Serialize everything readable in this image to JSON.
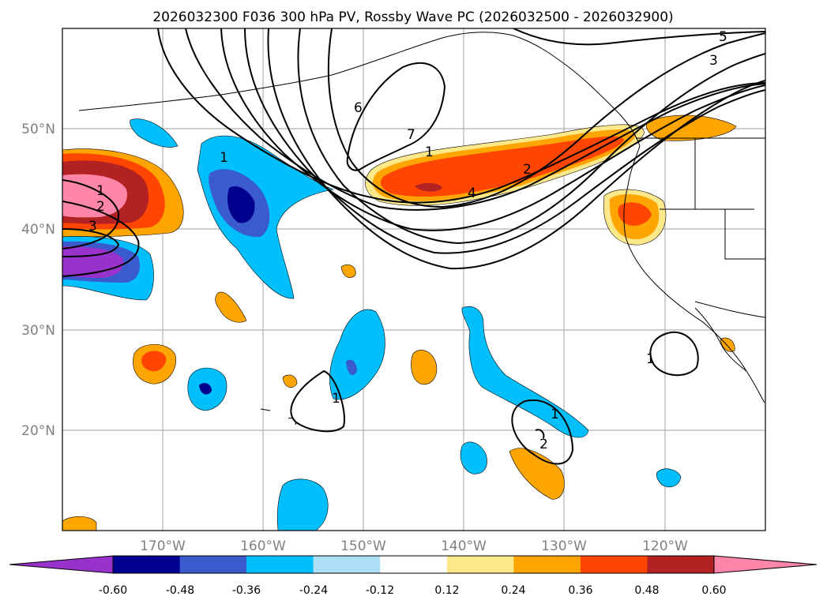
{
  "title": "2026032300 F036 300 hPa PV, Rossby Wave PC (2026032500 - 2026032900)",
  "map": {
    "lat_labels": [
      "50°N",
      "40°N",
      "30°N",
      "20°N"
    ],
    "lon_labels": [
      "170°W",
      "160°W",
      "150°W",
      "140°W",
      "130°W",
      "120°W"
    ],
    "contour_labels": [
      "1",
      "2",
      "3",
      "4",
      "5",
      "6",
      "7",
      "3",
      "2",
      "1",
      "1",
      "1",
      "1",
      "2",
      "1"
    ]
  },
  "colorbar": {
    "colors": [
      "#9932CC",
      "#000090",
      "#3A5BCD",
      "#00BFFF",
      "#ADE0F7",
      "#FFFFFF",
      "#FDE88A",
      "#FFA500",
      "#FF4500",
      "#B22222",
      "#FF85AB"
    ],
    "tick_labels": [
      "-0.60",
      "-0.48",
      "-0.36",
      "-0.24",
      "-0.12",
      "0.12",
      "0.24",
      "0.36",
      "0.48",
      "0.60"
    ]
  }
}
